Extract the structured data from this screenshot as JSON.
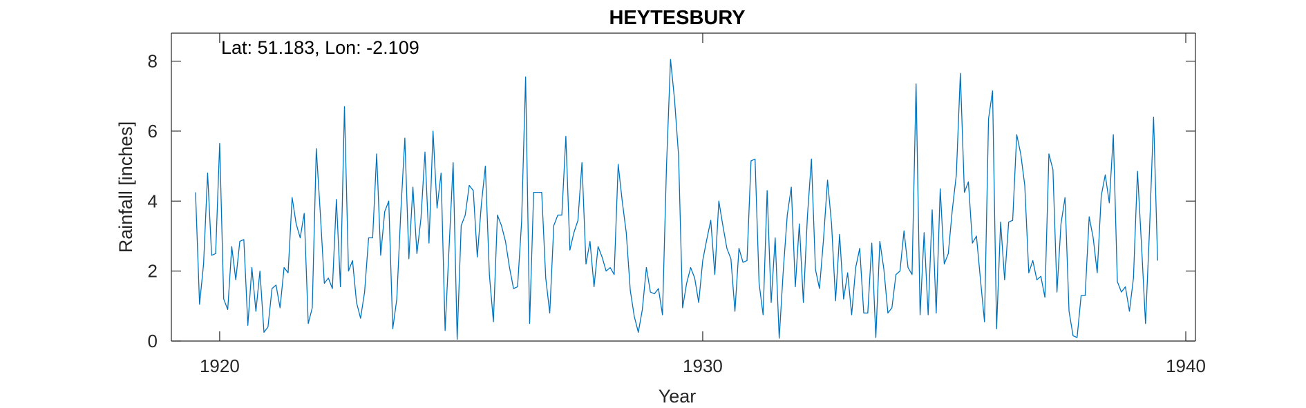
{
  "chart_data": {
    "type": "line",
    "title": "HEYTESBURY",
    "annotation": "Lat: 51.183, Lon: -2.109",
    "xlabel": "Year",
    "ylabel": "Rainfall [inches]",
    "xlim": [
      1919.0,
      1940.2
    ],
    "ylim": [
      0,
      8.8
    ],
    "xticks": [
      1920,
      1930,
      1940
    ],
    "xtick_labels": [
      "1920",
      "1930",
      "1940"
    ],
    "yticks": [
      0,
      2,
      4,
      6,
      8
    ],
    "ytick_labels": [
      "0",
      "2",
      "4",
      "6",
      "8"
    ],
    "grid": false,
    "series": [
      {
        "color": "#0072BD",
        "x_start": 1919.5,
        "x_step": 0.0833333,
        "values": [
          4.25,
          1.05,
          2.2,
          4.8,
          2.45,
          2.5,
          5.65,
          1.2,
          0.9,
          2.7,
          1.75,
          2.85,
          2.9,
          0.45,
          2.1,
          0.85,
          2.0,
          0.25,
          0.4,
          1.5,
          1.6,
          0.95,
          2.1,
          1.95,
          4.1,
          3.35,
          2.95,
          3.65,
          0.5,
          0.95,
          5.5,
          3.65,
          1.65,
          1.8,
          1.5,
          4.05,
          1.55,
          6.7,
          2.0,
          2.3,
          1.1,
          0.65,
          1.4,
          2.95,
          2.95,
          5.35,
          2.45,
          3.7,
          4.0,
          0.35,
          1.2,
          3.7,
          5.8,
          2.35,
          4.4,
          2.5,
          3.5,
          5.4,
          2.8,
          6.0,
          3.8,
          4.8,
          0.3,
          2.7,
          5.1,
          0.05,
          3.3,
          3.6,
          4.45,
          4.3,
          2.4,
          3.9,
          5.0,
          1.9,
          0.55,
          3.6,
          3.3,
          2.85,
          2.1,
          1.5,
          1.55,
          3.4,
          7.55,
          0.5,
          4.25,
          4.25,
          4.25,
          1.8,
          0.8,
          3.3,
          3.6,
          3.6,
          5.85,
          2.6,
          3.1,
          3.45,
          5.1,
          2.2,
          2.85,
          1.55,
          2.7,
          2.4,
          2.0,
          2.1,
          1.9,
          5.05,
          4.0,
          3.1,
          1.45,
          0.7,
          0.25,
          0.9,
          2.1,
          1.4,
          1.35,
          1.5,
          0.75,
          5.0,
          8.05,
          6.9,
          5.3,
          0.95,
          1.65,
          2.1,
          1.8,
          1.1,
          2.3,
          2.9,
          3.45,
          1.9,
          4.0,
          3.3,
          2.65,
          2.35,
          0.85,
          2.65,
          2.25,
          2.3,
          5.15,
          5.2,
          1.65,
          0.75,
          4.3,
          1.1,
          2.95,
          0.08,
          2.0,
          3.6,
          4.4,
          1.55,
          3.35,
          1.1,
          3.55,
          5.2,
          2.05,
          1.5,
          2.9,
          4.6,
          3.35,
          1.15,
          3.05,
          1.2,
          1.95,
          0.75,
          2.1,
          2.65,
          0.8,
          0.8,
          2.8,
          0.1,
          2.85,
          2.05,
          0.8,
          0.95,
          1.9,
          2.0,
          3.15,
          2.1,
          1.9,
          7.35,
          0.75,
          3.1,
          0.75,
          3.75,
          0.8,
          4.35,
          2.2,
          2.5,
          3.75,
          4.75,
          7.65,
          4.25,
          4.55,
          2.8,
          3.0,
          1.75,
          0.55,
          6.35,
          7.15,
          0.35,
          3.4,
          1.75,
          3.4,
          3.45,
          5.9,
          5.35,
          4.45,
          1.95,
          2.3,
          1.75,
          1.85,
          1.25,
          5.35,
          4.9,
          1.4,
          3.35,
          4.1,
          0.85,
          0.15,
          0.1,
          1.3,
          1.3,
          3.55,
          2.95,
          1.95,
          4.15,
          4.75,
          3.95,
          5.9,
          1.7,
          1.4,
          1.55,
          0.85,
          1.8,
          4.85,
          2.75,
          0.5,
          3.2,
          6.4,
          2.3
        ]
      }
    ]
  }
}
